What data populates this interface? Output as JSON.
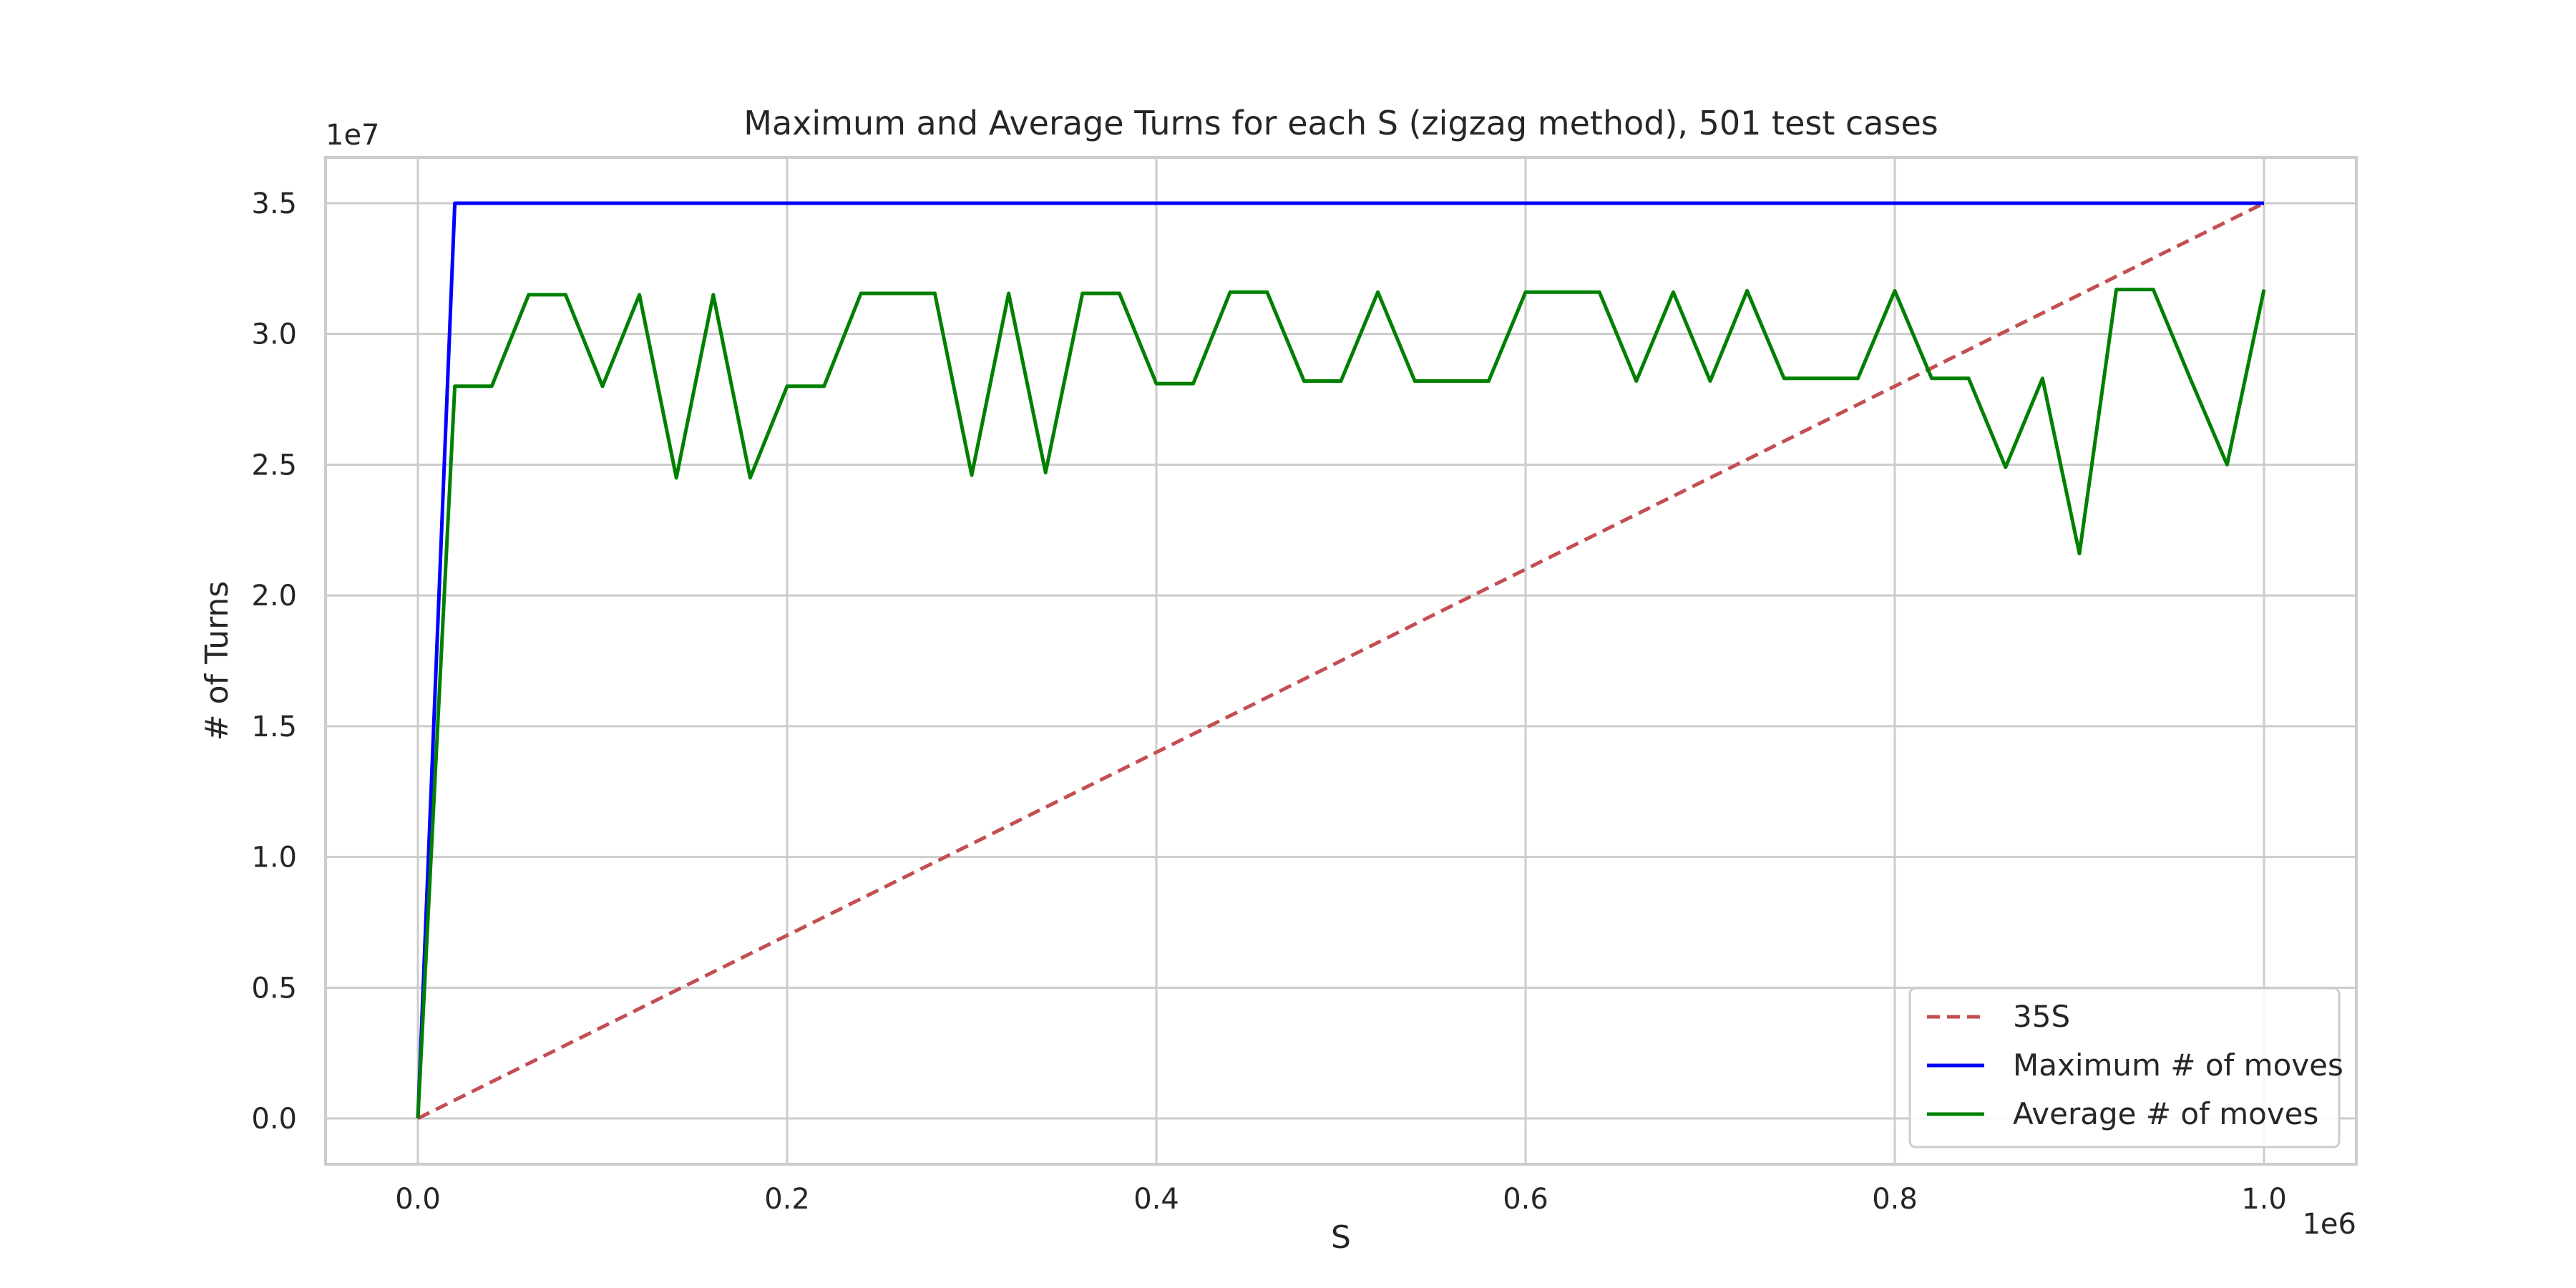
{
  "chart_data": {
    "type": "line",
    "title": "Maximum and Average Turns for each S (zigzag method), 501 test cases",
    "xlabel": "S",
    "ylabel": "# of Turns",
    "x_offset_label": "1e6",
    "y_offset_label": "1e7",
    "xlim": [
      -0.05,
      1.05
    ],
    "ylim": [
      -0.175,
      3.675
    ],
    "x_ticks": [
      0.0,
      0.2,
      0.4,
      0.6,
      0.8,
      1.0
    ],
    "x_tick_labels": [
      "0.0",
      "0.2",
      "0.4",
      "0.6",
      "0.8",
      "1.0"
    ],
    "y_ticks": [
      0.0,
      0.5,
      1.0,
      1.5,
      2.0,
      2.5,
      3.0,
      3.5
    ],
    "y_tick_labels": [
      "0.0",
      "0.5",
      "1.0",
      "1.5",
      "2.0",
      "2.5",
      "3.0",
      "3.5"
    ],
    "grid": true,
    "legend_position": "lower-right",
    "series": [
      {
        "name": "35S",
        "color": "#c44e52",
        "style": "dashed",
        "x": [
          0.0,
          1.0
        ],
        "y": [
          0.0,
          3.5
        ]
      },
      {
        "name": "Maximum # of moves",
        "color": "#0000ff",
        "style": "solid",
        "x": [
          0.0,
          0.02,
          1.0
        ],
        "y": [
          0.0,
          3.5,
          3.5
        ]
      },
      {
        "name": "Average # of moves",
        "color": "#008000",
        "style": "solid",
        "x": [
          0.0,
          0.02,
          0.04,
          0.06,
          0.08,
          0.1,
          0.12,
          0.14,
          0.16,
          0.18,
          0.2,
          0.22,
          0.24,
          0.26,
          0.28,
          0.3,
          0.32,
          0.34,
          0.36,
          0.38,
          0.4,
          0.42,
          0.44,
          0.46,
          0.48,
          0.5,
          0.52,
          0.54,
          0.56,
          0.58,
          0.6,
          0.62,
          0.64,
          0.66,
          0.68,
          0.7,
          0.72,
          0.74,
          0.76,
          0.78,
          0.8,
          0.82,
          0.84,
          0.86,
          0.88,
          0.9,
          0.92,
          0.94,
          0.96,
          0.98,
          1.0
        ],
        "y": [
          0.0,
          2.8,
          2.8,
          3.15,
          3.15,
          2.8,
          3.15,
          2.45,
          3.15,
          2.45,
          2.8,
          2.8,
          3.155,
          3.155,
          3.155,
          2.46,
          3.155,
          2.47,
          3.155,
          3.155,
          2.81,
          2.81,
          3.16,
          3.16,
          2.82,
          2.82,
          3.16,
          2.82,
          2.82,
          2.82,
          3.16,
          3.16,
          3.16,
          2.82,
          3.16,
          2.82,
          3.165,
          2.83,
          2.83,
          2.83,
          3.165,
          2.83,
          2.83,
          2.49,
          2.83,
          2.16,
          3.17,
          3.17,
          2.83,
          2.5,
          3.17
        ]
      }
    ]
  }
}
